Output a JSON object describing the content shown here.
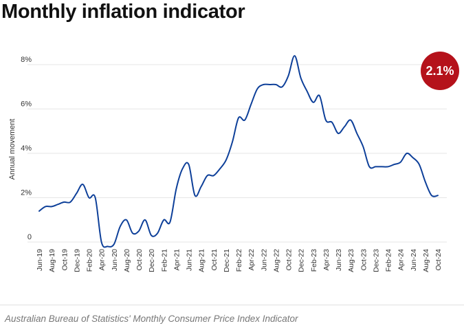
{
  "title": "Monthly inflation indicator",
  "badge": "2.1%",
  "source": "Australian Bureau of Statistics' Monthly Consumer Price Index Indicator",
  "colors": {
    "line": "#0d3f99",
    "badge": "#b5121b",
    "grid": "#e6e6e6"
  },
  "chart_data": {
    "type": "line",
    "ylabel": "Annual movement",
    "ylim": [
      0,
      8
    ],
    "yticks": [
      0,
      2,
      4,
      6,
      8
    ],
    "ytick_labels": [
      "0",
      "2%",
      "4%",
      "6%",
      "8%"
    ],
    "grid": true,
    "categories": [
      "Jun-19",
      "Jul-19",
      "Aug-19",
      "Sep-19",
      "Oct-19",
      "Nov-19",
      "Dec-19",
      "Jan-20",
      "Feb-20",
      "Mar-20",
      "Apr-20",
      "May-20",
      "Jun-20",
      "Jul-20",
      "Aug-20",
      "Sep-20",
      "Oct-20",
      "Nov-20",
      "Dec-20",
      "Jan-21",
      "Feb-21",
      "Mar-21",
      "Apr-21",
      "May-21",
      "Jun-21",
      "Jul-21",
      "Aug-21",
      "Sep-21",
      "Oct-21",
      "Nov-21",
      "Dec-21",
      "Jan-22",
      "Feb-22",
      "Mar-22",
      "Apr-22",
      "May-22",
      "Jun-22",
      "Jul-22",
      "Aug-22",
      "Sep-22",
      "Oct-22",
      "Nov-22",
      "Dec-22",
      "Jan-23",
      "Feb-23",
      "Mar-23",
      "Apr-23",
      "May-23",
      "Jun-23",
      "Jul-23",
      "Aug-23",
      "Sep-23",
      "Oct-23",
      "Nov-23",
      "Dec-23",
      "Jan-24",
      "Feb-24",
      "Mar-24",
      "Apr-24",
      "May-24",
      "Jun-24",
      "Jul-24",
      "Aug-24",
      "Sep-24",
      "Oct-24"
    ],
    "tick_labels": [
      "Jun-19",
      "Aug-19",
      "Oct-19",
      "Dec-19",
      "Feb-20",
      "Apr-20",
      "Jun-20",
      "Aug-20",
      "Oct-20",
      "Dec-20",
      "Feb-21",
      "Apr-21",
      "Jun-21",
      "Aug-21",
      "Oct-21",
      "Dec-21",
      "Feb-22",
      "Apr-22",
      "Jun-22",
      "Aug-22",
      "Oct-22",
      "Dec-22",
      "Feb-23",
      "Apr-23",
      "Jun-23",
      "Aug-23",
      "Oct-23",
      "Dec-23",
      "Feb-24",
      "Apr-24",
      "Jun-24",
      "Aug-24",
      "Oct-24"
    ],
    "series": [
      {
        "values": [
          1.4,
          1.6,
          1.6,
          1.7,
          1.8,
          1.8,
          2.2,
          2.6,
          2.0,
          2.0,
          0.0,
          -0.2,
          -0.1,
          0.7,
          1.0,
          0.4,
          0.5,
          1.0,
          0.3,
          0.4,
          1.0,
          0.9,
          2.4,
          3.3,
          3.5,
          2.1,
          2.5,
          3.0,
          3.0,
          3.3,
          3.7,
          4.5,
          5.6,
          5.5,
          6.2,
          6.9,
          7.1,
          7.1,
          7.1,
          7.0,
          7.5,
          8.4,
          7.4,
          6.8,
          6.3,
          6.6,
          5.5,
          5.4,
          4.9,
          5.2,
          5.5,
          4.9,
          4.3,
          3.4,
          3.4,
          3.4,
          3.4,
          3.5,
          3.6,
          4.0,
          3.8,
          3.5,
          2.7,
          2.1,
          2.1
        ]
      }
    ]
  }
}
